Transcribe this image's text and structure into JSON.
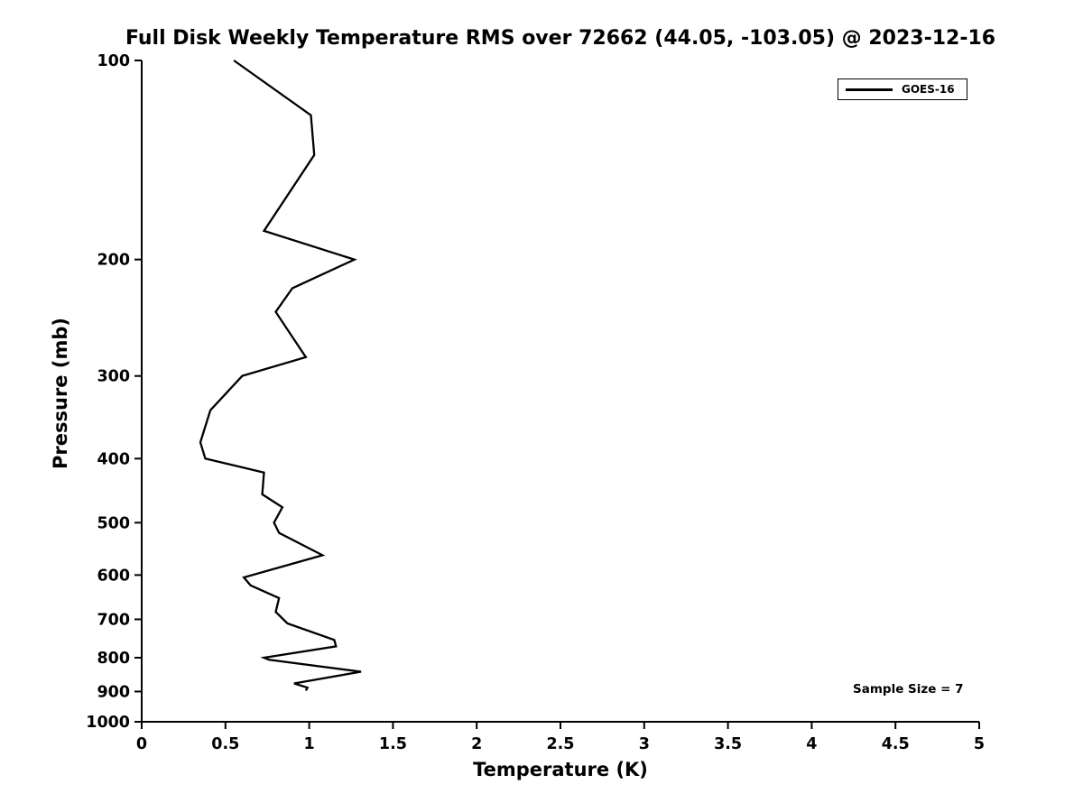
{
  "page": {
    "background_color": "#ffffff",
    "foreground_color": "#000000"
  },
  "chart_data": {
    "type": "line",
    "title": "Full Disk Weekly Temperature RMS over 72662 (44.05, -103.05) @ 2023-12-16",
    "xlabel": "Temperature (K)",
    "ylabel": "Pressure (mb)",
    "xlim": [
      0,
      5
    ],
    "ylim": [
      100,
      1000
    ],
    "y_scale": "log",
    "y_inverted": true,
    "grid": false,
    "x_ticks": [
      0,
      0.5,
      1,
      1.5,
      2,
      2.5,
      3,
      3.5,
      4,
      4.5,
      5
    ],
    "x_tick_labels": [
      "0",
      "0.5",
      "1",
      "1.5",
      "2",
      "2.5",
      "3",
      "3.5",
      "4",
      "4.5",
      "5"
    ],
    "y_ticks": [
      100,
      200,
      300,
      400,
      500,
      600,
      700,
      800,
      900,
      1000
    ],
    "y_tick_labels": [
      "100",
      "200",
      "300",
      "400",
      "500",
      "600",
      "700",
      "800",
      "900",
      "1000"
    ],
    "legend": {
      "position": "top-right",
      "entries": [
        {
          "label": "GOES-16",
          "color": "#000000",
          "line_width": 3
        }
      ]
    },
    "annotation": {
      "text": "Sample Size = 7"
    },
    "series": [
      {
        "name": "GOES-16",
        "color": "#000000",
        "line_width": 2.3,
        "pressure_mb": [
          100,
          121,
          139,
          181,
          200,
          221,
          240,
          281,
          300,
          338,
          378,
          400,
          420,
          453,
          474,
          500,
          518,
          560,
          605,
          622,
          650,
          682,
          710,
          752,
          769,
          800,
          806,
          840,
          875,
          888,
          897
        ],
        "temp_rms_k": [
          0.55,
          1.01,
          1.03,
          0.73,
          1.27,
          0.9,
          0.8,
          0.98,
          0.6,
          0.41,
          0.35,
          0.38,
          0.73,
          0.72,
          0.84,
          0.79,
          0.82,
          1.08,
          0.61,
          0.65,
          0.82,
          0.8,
          0.87,
          1.15,
          1.16,
          0.73,
          0.76,
          1.31,
          0.91,
          0.99,
          0.98
        ]
      }
    ]
  }
}
